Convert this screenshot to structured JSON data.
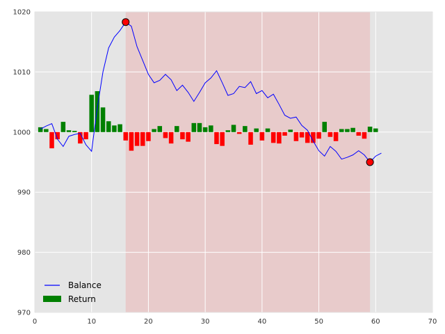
{
  "chart_data": {
    "type": "line",
    "title": "",
    "xlabel": "",
    "ylabel": "",
    "xlim": [
      0,
      70
    ],
    "ylim": [
      970,
      1020
    ],
    "xticks": [
      0,
      10,
      20,
      30,
      40,
      50,
      60,
      70
    ],
    "yticks": [
      970,
      980,
      990,
      1000,
      1010,
      1020
    ],
    "grid": true,
    "legend_position": "lower-left",
    "highlight_region": {
      "x_start": 16,
      "x_end": 59,
      "color": "#e8c8c8"
    },
    "colors": {
      "background": "#e5e5e5",
      "grid": "#ffffff",
      "balance_line": "#0000ff",
      "return_positive": "#008000",
      "return_negative": "#ff0000",
      "marker": "#ff0000"
    },
    "series": [
      {
        "name": "Balance",
        "type": "line",
        "x": [
          1,
          2,
          3,
          4,
          5,
          6,
          7,
          8,
          9,
          10,
          11,
          12,
          13,
          14,
          15,
          16,
          17,
          18,
          19,
          20,
          21,
          22,
          23,
          24,
          25,
          26,
          27,
          28,
          29,
          30,
          31,
          32,
          33,
          34,
          35,
          36,
          37,
          38,
          39,
          40,
          41,
          42,
          43,
          44,
          45,
          46,
          47,
          48,
          49,
          50,
          51,
          52,
          53,
          54,
          55,
          56,
          57,
          58,
          59,
          60,
          61
        ],
        "values": [
          1000.5,
          1001.0,
          1001.4,
          998.8,
          997.6,
          999.3,
          999.6,
          999.8,
          997.9,
          996.8,
          1004.0,
          1010.0,
          1014.0,
          1015.8,
          1016.9,
          1018.3,
          1017.6,
          1014.2,
          1011.9,
          1009.6,
          1008.2,
          1008.6,
          1009.6,
          1008.7,
          1006.9,
          1007.8,
          1006.6,
          1005.1,
          1006.6,
          1008.2,
          1009.0,
          1010.2,
          1008.2,
          1006.1,
          1006.4,
          1007.6,
          1007.4,
          1008.4,
          1006.4,
          1006.9,
          1005.7,
          1006.3,
          1004.6,
          1002.8,
          1002.3,
          1002.5,
          1001.1,
          1000.3,
          998.5,
          996.9,
          996.0,
          997.6,
          996.8,
          995.5,
          995.8,
          996.2,
          996.9,
          996.2,
          995.0,
          996.0,
          996.5
        ]
      },
      {
        "name": "Return",
        "type": "bar",
        "x": [
          1,
          2,
          3,
          4,
          5,
          6,
          7,
          8,
          9,
          10,
          11,
          12,
          13,
          14,
          15,
          16,
          17,
          18,
          19,
          20,
          21,
          22,
          23,
          24,
          25,
          26,
          27,
          28,
          29,
          30,
          31,
          32,
          33,
          34,
          35,
          36,
          37,
          38,
          39,
          40,
          41,
          42,
          43,
          44,
          45,
          46,
          47,
          48,
          49,
          50,
          51,
          52,
          53,
          54,
          55,
          56,
          57,
          58,
          59,
          60
        ],
        "values": [
          0.8,
          0.5,
          -2.7,
          -1.2,
          1.7,
          0.3,
          0.2,
          -1.9,
          -1.2,
          6.2,
          6.8,
          4.1,
          1.8,
          1.1,
          1.3,
          -1.4,
          -3.1,
          -2.3,
          -2.3,
          -1.5,
          0.5,
          1.0,
          -1.0,
          -1.9,
          1.0,
          -1.2,
          -1.6,
          1.5,
          1.5,
          0.8,
          1.1,
          -2.0,
          -2.3,
          0.3,
          1.2,
          -0.3,
          1.0,
          -2.1,
          0.6,
          -1.4,
          0.6,
          -1.8,
          -1.9,
          -0.6,
          0.4,
          -1.5,
          -0.9,
          -1.8,
          -1.8,
          -1.1,
          1.7,
          -0.8,
          -1.5,
          0.5,
          0.5,
          0.7,
          -0.6,
          -1.1,
          0.9,
          0.6
        ]
      }
    ],
    "markers": [
      {
        "x": 16,
        "y": 1018.3
      },
      {
        "x": 59,
        "y": 995.0
      }
    ]
  }
}
